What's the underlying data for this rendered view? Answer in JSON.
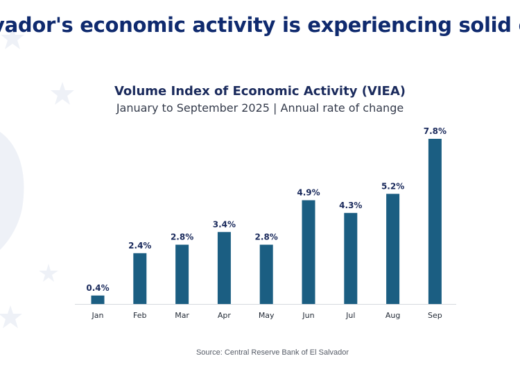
{
  "headline": "vador's economic activity is experiencing solid expa",
  "chart_data": {
    "type": "bar",
    "title": "Volume Index of Economic Activity (VIEA)",
    "subtitle": "January to September 2025 | Annual rate of change",
    "categories": [
      "Jan",
      "Feb",
      "Mar",
      "Apr",
      "May",
      "Jun",
      "Jul",
      "Aug",
      "Sep"
    ],
    "values": [
      0.4,
      2.4,
      2.8,
      3.4,
      2.8,
      4.9,
      4.3,
      5.2,
      7.8
    ],
    "value_labels": [
      "0.4%",
      "2.4%",
      "2.8%",
      "3.4%",
      "2.8%",
      "4.9%",
      "4.3%",
      "5.2%",
      "7.8%"
    ],
    "unit": "%",
    "xlabel": "",
    "ylabel": "",
    "ylim": [
      0,
      8
    ],
    "grid": false,
    "bar_color": "#1b5e82"
  },
  "source": "Source: Central Reserve Bank of El Salvador",
  "colors": {
    "headline": "#0f2a6e",
    "title": "#1a2a5c",
    "label": "#1a2a5c",
    "decor": "#eef1f7"
  },
  "decor_icon": "star-icon"
}
